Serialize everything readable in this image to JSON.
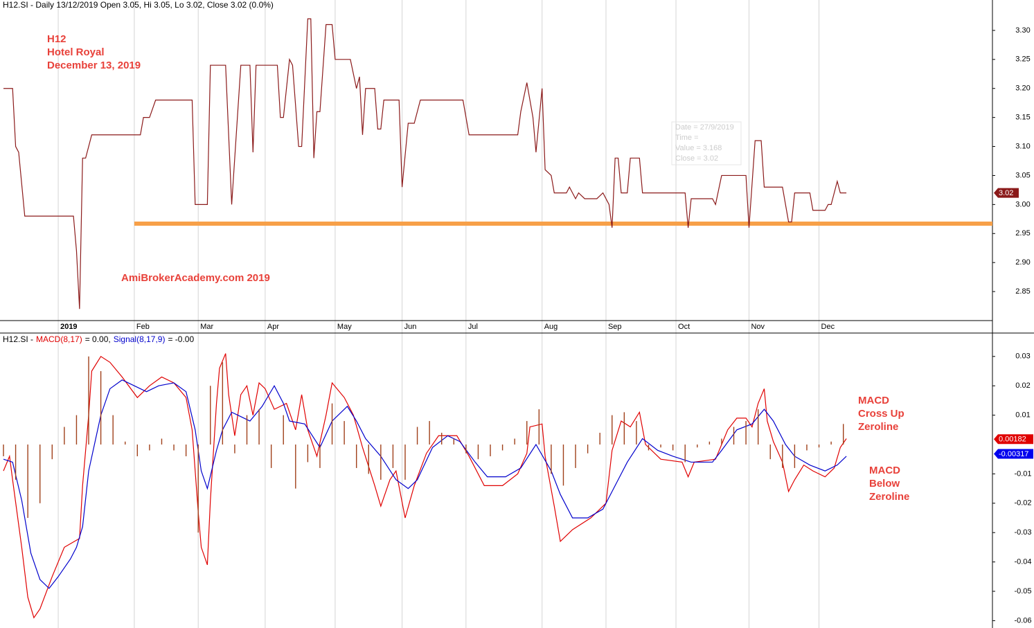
{
  "chart_data": [
    {
      "type": "line",
      "title": "H12.SI - Daily 13/12/2019 Open 3.05, Hi 3.05, Lo 3.02, Close 3.02 (0.0%)",
      "annotations": [
        "H12",
        "Hotel Royal",
        "December 13, 2019",
        "AmiBrokerAcademy.com  2019"
      ],
      "tooltip": [
        "Date = 27/9/2019",
        "Time =",
        "Value = 3.168",
        "Close = 3.02"
      ],
      "xlim": [
        0,
        325
      ],
      "xticks": [
        {
          "value": 18,
          "label": "2019"
        },
        {
          "value": 43,
          "label": "Feb"
        },
        {
          "value": 64,
          "label": "Mar"
        },
        {
          "value": 86,
          "label": "Apr"
        },
        {
          "value": 109,
          "label": "May"
        },
        {
          "value": 131,
          "label": "Jun"
        },
        {
          "value": 152,
          "label": "Jul"
        },
        {
          "value": 177,
          "label": "Aug"
        },
        {
          "value": 198,
          "label": "Sep"
        },
        {
          "value": 221,
          "label": "Oct"
        },
        {
          "value": 245,
          "label": "Nov"
        },
        {
          "value": 268,
          "label": "Dec"
        }
      ],
      "ylim": [
        2.8,
        3.35
      ],
      "yticks": [
        {
          "value": 2.85,
          "label": "2.85"
        },
        {
          "value": 2.9,
          "label": "2.90"
        },
        {
          "value": 2.95,
          "label": "2.95"
        },
        {
          "value": 3.0,
          "label": "3.00"
        },
        {
          "value": 3.05,
          "label": "3.05"
        },
        {
          "value": 3.1,
          "label": "3.10"
        },
        {
          "value": 3.15,
          "label": "3.15"
        },
        {
          "value": 3.2,
          "label": "3.20"
        },
        {
          "value": 3.25,
          "label": "3.25"
        },
        {
          "value": 3.3,
          "label": "3.30"
        }
      ],
      "series": [
        {
          "color": "#8b1a1a",
          "x": [
            0,
            3,
            4,
            5,
            7,
            23,
            24,
            25,
            26,
            27,
            29,
            45,
            46,
            48,
            50,
            62,
            63,
            67,
            68,
            73,
            75,
            78,
            81,
            82,
            83,
            90,
            91,
            92,
            94,
            95,
            97,
            98,
            100,
            101,
            102,
            103,
            104,
            106,
            108,
            109,
            114,
            116,
            117,
            118,
            119,
            122,
            123,
            124,
            125,
            130,
            131,
            133,
            135,
            137,
            151,
            153,
            169,
            170,
            172,
            174,
            175,
            177,
            178,
            180,
            181,
            185,
            186,
            187,
            188,
            189,
            191,
            195,
            197,
            199,
            200,
            201,
            202,
            203,
            205,
            206,
            209,
            210,
            224,
            225,
            226,
            233,
            234,
            236,
            244,
            245,
            247,
            249,
            250,
            256,
            258,
            259,
            260,
            265,
            266,
            270,
            271,
            272,
            274,
            275,
            277
          ],
          "values": [
            3.2,
            3.2,
            3.1,
            3.09,
            2.98,
            2.98,
            2.92,
            2.82,
            3.08,
            3.08,
            3.12,
            3.12,
            3.15,
            3.15,
            3.18,
            3.18,
            3.0,
            3.0,
            3.24,
            3.24,
            3.0,
            3.24,
            3.24,
            3.09,
            3.24,
            3.24,
            3.15,
            3.15,
            3.25,
            3.24,
            3.1,
            3.1,
            3.32,
            3.32,
            3.08,
            3.16,
            3.16,
            3.31,
            3.31,
            3.25,
            3.25,
            3.2,
            3.22,
            3.12,
            3.2,
            3.2,
            3.13,
            3.13,
            3.18,
            3.18,
            3.03,
            3.14,
            3.14,
            3.18,
            3.18,
            3.12,
            3.12,
            3.16,
            3.21,
            3.15,
            3.09,
            3.2,
            3.06,
            3.05,
            3.02,
            3.02,
            3.03,
            3.02,
            3.01,
            3.02,
            3.01,
            3.01,
            3.02,
            3.0,
            2.96,
            3.08,
            3.08,
            3.02,
            3.02,
            3.08,
            3.08,
            3.02,
            3.02,
            2.96,
            3.01,
            3.01,
            3.0,
            3.05,
            3.05,
            2.96,
            3.11,
            3.11,
            3.03,
            3.03,
            2.97,
            2.97,
            3.02,
            3.02,
            2.99,
            2.99,
            3.0,
            3.0,
            3.04,
            3.02,
            3.02
          ]
        }
      ],
      "support_line": {
        "value": 2.967,
        "x": [
          43,
          325
        ],
        "color": "#f7a048"
      },
      "price_tag": {
        "value": 3.02,
        "label": "3.02",
        "color": "#8b1a1a"
      }
    },
    {
      "type": "line",
      "title": "H12.SI -",
      "annotations": [
        "MACD",
        "Cross Up",
        "Zeroline",
        "MACD",
        "Below",
        "Zeroline"
      ],
      "xlim": [
        0,
        325
      ],
      "ylim": [
        -0.0625,
        0.0375
      ],
      "yticks": [
        0.03,
        0.02,
        0.01,
        -0.01,
        -0.02,
        -0.03,
        -0.04,
        -0.05,
        -0.06
      ],
      "series": [
        {
          "name": "MACD(8,17)",
          "readout": "= 0.00,",
          "color": "#e00000",
          "x": [
            0,
            2,
            3,
            6,
            8,
            10,
            12,
            16,
            20,
            25,
            26,
            28,
            29,
            32,
            35,
            39,
            44,
            48,
            52,
            56,
            60,
            62,
            64,
            65,
            67,
            68,
            70,
            71,
            73,
            74,
            76,
            78,
            80,
            82,
            84,
            86,
            89,
            93,
            96,
            98,
            100,
            103,
            106,
            108,
            112,
            115,
            118,
            122,
            124,
            127,
            129,
            132,
            135,
            139,
            143,
            149,
            153,
            158,
            164,
            169,
            172,
            173,
            177,
            178,
            181,
            183,
            187,
            193,
            198,
            200,
            203,
            206,
            209,
            211,
            216,
            223,
            225,
            227,
            234,
            238,
            241,
            244,
            246,
            248,
            250,
            251,
            253,
            256,
            258,
            260,
            263,
            266,
            270,
            273,
            275,
            277
          ],
          "values": [
            -0.009,
            -0.004,
            -0.012,
            -0.035,
            -0.052,
            -0.059,
            -0.056,
            -0.045,
            -0.035,
            -0.032,
            -0.014,
            0.01,
            0.025,
            0.03,
            0.028,
            0.023,
            0.016,
            0.02,
            0.023,
            0.021,
            0.016,
            0.005,
            -0.023,
            -0.035,
            -0.041,
            -0.019,
            0.014,
            0.026,
            0.031,
            0.017,
            0.003,
            0.017,
            0.02,
            0.01,
            0.021,
            0.019,
            0.012,
            0.014,
            0.005,
            0.017,
            0.005,
            -0.004,
            0.01,
            0.021,
            0.016,
            0.01,
            -0.001,
            -0.014,
            -0.021,
            -0.012,
            -0.009,
            -0.025,
            -0.014,
            -0.003,
            0.003,
            0.003,
            -0.004,
            -0.014,
            -0.014,
            -0.01,
            -0.003,
            0.006,
            0.007,
            -0.004,
            -0.021,
            -0.033,
            -0.029,
            -0.025,
            -0.02,
            -0.002,
            0.008,
            0.006,
            0.011,
            0.0,
            -0.005,
            -0.006,
            -0.011,
            -0.006,
            -0.005,
            0.005,
            0.009,
            0.009,
            0.006,
            0.014,
            0.019,
            0.008,
            0.001,
            -0.006,
            -0.016,
            -0.012,
            -0.007,
            -0.009,
            -0.011,
            -0.008,
            -0.001,
            0.002
          ]
        },
        {
          "name": "Signal(8,17,9)",
          "readout": "= -0.00",
          "color": "#0000cc",
          "x": [
            0,
            3,
            6,
            9,
            12,
            15,
            18,
            22,
            24,
            26,
            28,
            32,
            35,
            39,
            43,
            47,
            51,
            56,
            60,
            63,
            65,
            67,
            70,
            72,
            75,
            77,
            81,
            85,
            89,
            92,
            94,
            99,
            104,
            108,
            113,
            116,
            119,
            124,
            129,
            133,
            136,
            141,
            146,
            150,
            155,
            159,
            165,
            170,
            175,
            180,
            183,
            187,
            192,
            197,
            200,
            205,
            210,
            215,
            220,
            226,
            233,
            236,
            241,
            246,
            250,
            253,
            257,
            260,
            265,
            270,
            274,
            277
          ],
          "values": [
            -0.005,
            -0.006,
            -0.019,
            -0.037,
            -0.046,
            -0.049,
            -0.045,
            -0.039,
            -0.035,
            -0.028,
            -0.009,
            0.01,
            0.019,
            0.022,
            0.02,
            0.018,
            0.02,
            0.021,
            0.018,
            0.005,
            -0.009,
            -0.015,
            -0.002,
            0.005,
            0.011,
            0.01,
            0.008,
            0.013,
            0.02,
            0.014,
            0.008,
            0.007,
            -0.001,
            0.008,
            0.013,
            0.008,
            0.002,
            -0.004,
            -0.012,
            -0.015,
            -0.012,
            -0.001,
            0.003,
            0.001,
            -0.006,
            -0.011,
            -0.011,
            -0.008,
            0.0,
            -0.009,
            -0.017,
            -0.025,
            -0.025,
            -0.022,
            -0.016,
            -0.006,
            0.002,
            -0.002,
            -0.004,
            -0.006,
            -0.006,
            -0.002,
            0.005,
            0.007,
            0.012,
            0.008,
            0.0,
            -0.004,
            -0.007,
            -0.009,
            -0.007,
            -0.004
          ]
        },
        {
          "type": "bar",
          "color": "#a0401a",
          "x": [
            0,
            4,
            8,
            12,
            16,
            20,
            24,
            28,
            32,
            36,
            40,
            44,
            48,
            52,
            56,
            60,
            64,
            68,
            72,
            76,
            80,
            84,
            88,
            92,
            96,
            100,
            104,
            108,
            112,
            116,
            120,
            124,
            128,
            132,
            136,
            140,
            144,
            148,
            152,
            156,
            160,
            164,
            168,
            172,
            176,
            180,
            184,
            188,
            192,
            196,
            200,
            204,
            208,
            212,
            216,
            220,
            224,
            228,
            232,
            236,
            240,
            244,
            248,
            252,
            256,
            260,
            264,
            268,
            272,
            276
          ],
          "values": [
            -0.004,
            -0.012,
            -0.025,
            -0.02,
            -0.005,
            0.006,
            0.01,
            0.03,
            0.025,
            0.01,
            0.001,
            -0.004,
            -0.002,
            0.002,
            -0.002,
            -0.004,
            -0.03,
            0.02,
            0.028,
            -0.003,
            0.01,
            0.012,
            -0.008,
            0.01,
            -0.015,
            -0.006,
            -0.008,
            0.014,
            0.008,
            -0.008,
            -0.01,
            -0.012,
            -0.008,
            -0.012,
            0.006,
            0.008,
            0.004,
            0.002,
            -0.003,
            -0.005,
            -0.004,
            -0.002,
            0.002,
            0.008,
            0.012,
            -0.01,
            -0.014,
            -0.008,
            -0.003,
            0.004,
            0.01,
            0.011,
            0.008,
            -0.002,
            -0.001,
            -0.002,
            -0.006,
            -0.001,
            0.001,
            0.002,
            0.006,
            0.008,
            0.012,
            -0.005,
            -0.008,
            -0.008,
            -0.002,
            -0.001,
            0.001,
            0.007
          ]
        }
      ],
      "value_tags": [
        {
          "value": 0.00182,
          "label": "0.00182",
          "color": "#e00000"
        },
        {
          "value": -0.00317,
          "label": "-0.00317",
          "color": "#0000ee"
        }
      ]
    }
  ]
}
